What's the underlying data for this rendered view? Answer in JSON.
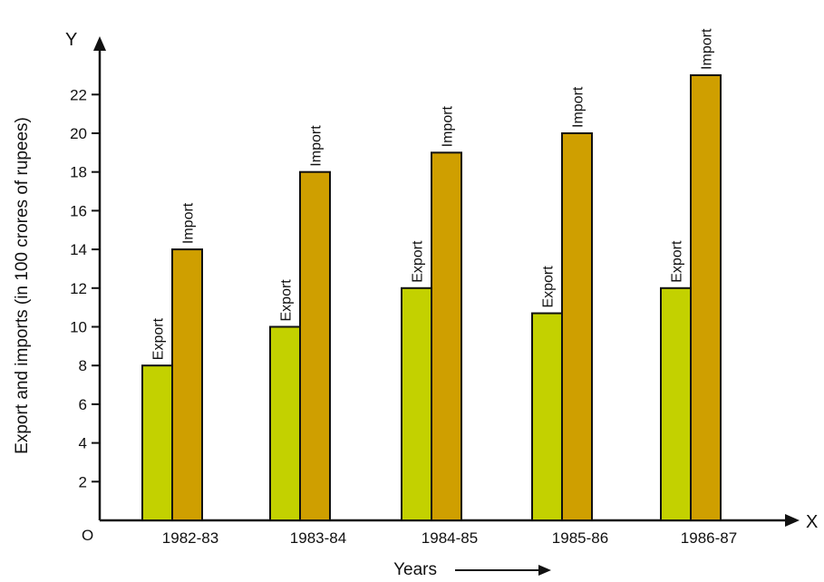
{
  "chart_data": {
    "type": "bar",
    "categories": [
      "1982-83",
      "1983-84",
      "1984-85",
      "1985-86",
      "1986-87"
    ],
    "series": [
      {
        "name": "Export",
        "values": [
          8,
          10,
          12,
          10.7,
          12
        ],
        "color": "#c3d100"
      },
      {
        "name": "Import",
        "values": [
          14,
          18,
          19,
          20,
          23
        ],
        "color": "#cf9f00"
      }
    ],
    "bar_labels": [
      "Export",
      "Import"
    ],
    "ylabel": "Export and imports (in 100 crores of rupees)",
    "xlabel": "Years",
    "ylim": [
      0,
      24
    ],
    "yticks": [
      2,
      4,
      6,
      8,
      10,
      12,
      14,
      16,
      18,
      20,
      22
    ],
    "x_axis_letter": "X",
    "y_axis_letter": "Y",
    "origin_label": "O",
    "grid": false,
    "legend": "none"
  }
}
